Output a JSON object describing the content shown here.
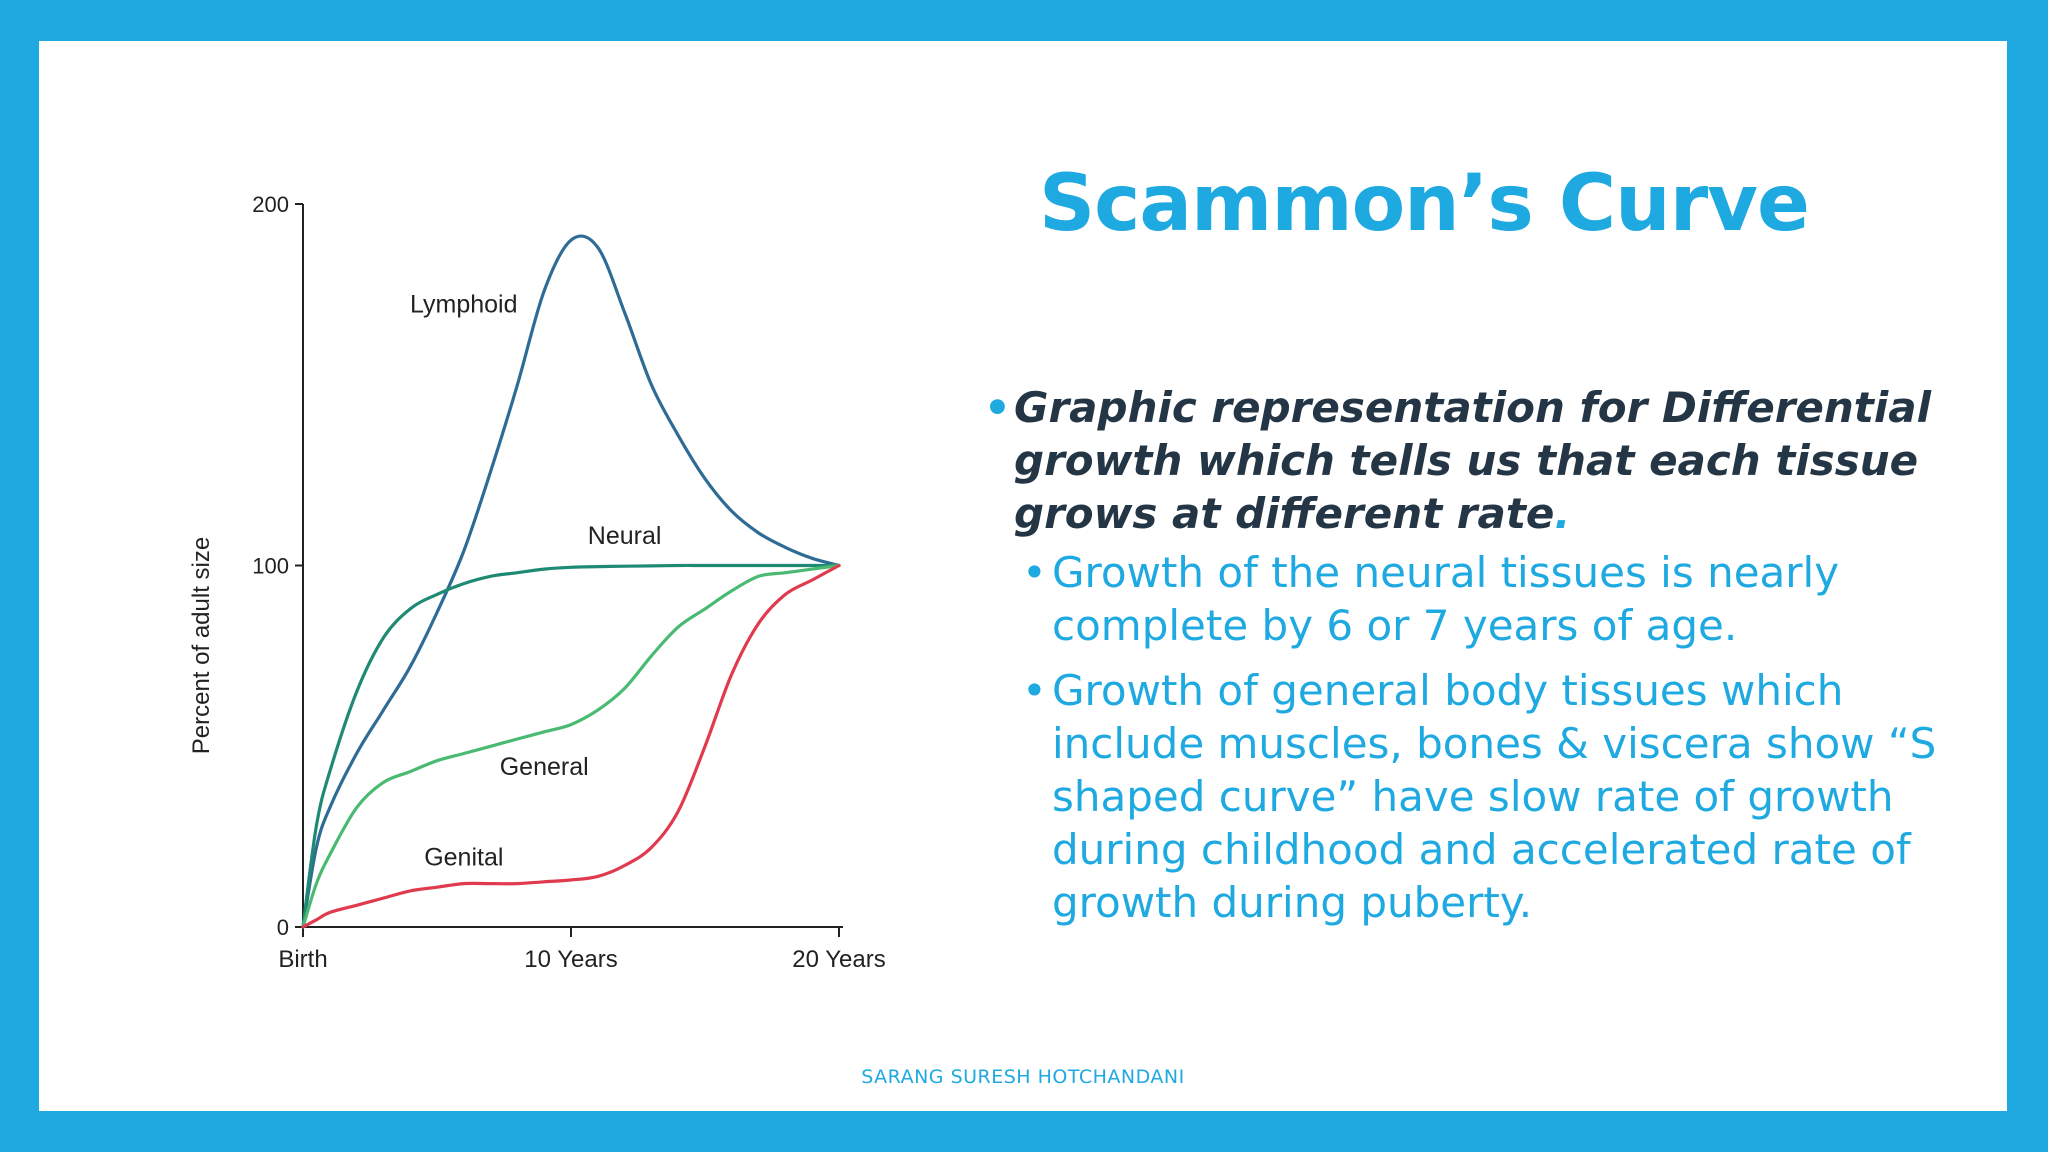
{
  "slide": {
    "title": "Scammon’s Curve",
    "main_bullet": {
      "text": "Graphic representation for Differential growth which tells us that each tissue grows at different rate",
      "trailing": "."
    },
    "sub_bullets": [
      "Growth of the neural tissues is nearly complete by 6 or 7 years of age.",
      "Growth of general body tissues which include muscles, bones & viscera show “S shaped curve” have slow rate of growth during childhood and accelerated rate of growth during puberty."
    ],
    "footer": "SARANG SURESH HOTCHANDANI",
    "colors": {
      "frame": "#1fa9e1",
      "accent": "#1fa9e1",
      "body_text": "#243645"
    }
  },
  "chart_data": {
    "type": "line",
    "ylabel": "Percent of adult size",
    "ylim": [
      0,
      200
    ],
    "yticks": [
      0,
      100,
      200
    ],
    "xlim": [
      0,
      20
    ],
    "xticks": [
      {
        "value": 0,
        "label": "Birth"
      },
      {
        "value": 10,
        "label": "10 Years"
      },
      {
        "value": 20,
        "label": "20 Years"
      }
    ],
    "series": [
      {
        "name": "Lymphoid",
        "color": "#2e6b95",
        "x": [
          0,
          0.5,
          1,
          2,
          3,
          4,
          5,
          6,
          7,
          8,
          9,
          10,
          11,
          12,
          13,
          14,
          15,
          16,
          17,
          18,
          19,
          20
        ],
        "y": [
          0,
          22,
          33,
          48,
          60,
          72,
          87,
          104,
          126,
          150,
          176,
          190,
          188,
          170,
          150,
          136,
          124,
          115,
          109,
          105,
          102,
          100
        ],
        "label_at": [
          6,
          170
        ]
      },
      {
        "name": "Neural",
        "color": "#1f8a74",
        "x": [
          0,
          0.5,
          1,
          2,
          3,
          4,
          5,
          6,
          7,
          8,
          9,
          10,
          11,
          12,
          13,
          14,
          15,
          16,
          17,
          18,
          19,
          20
        ],
        "y": [
          0,
          28,
          43,
          65,
          80,
          88,
          92,
          95,
          97,
          98,
          99,
          99.5,
          99.7,
          99.8,
          99.9,
          100,
          100,
          100,
          100,
          100,
          100,
          100
        ],
        "label_at": [
          12,
          106
        ]
      },
      {
        "name": "General",
        "color": "#4aba73",
        "x": [
          0,
          0.5,
          1,
          2,
          3,
          4,
          5,
          6,
          7,
          8,
          9,
          10,
          11,
          12,
          13,
          14,
          15,
          16,
          17,
          18,
          19,
          20
        ],
        "y": [
          0,
          12,
          20,
          33,
          40,
          43,
          46,
          48,
          50,
          52,
          54,
          56,
          60,
          66,
          75,
          83,
          88,
          93,
          97,
          98,
          99,
          100
        ],
        "label_at": [
          9,
          42
        ]
      },
      {
        "name": "Genital",
        "color": "#e03a4e",
        "x": [
          0,
          0.5,
          1,
          2,
          3,
          4,
          5,
          6,
          7,
          8,
          9,
          10,
          11,
          12,
          13,
          14,
          15,
          16,
          17,
          18,
          19,
          20
        ],
        "y": [
          0,
          2,
          4,
          6,
          8,
          10,
          11,
          12,
          12,
          12,
          12.5,
          13,
          14,
          17,
          22,
          32,
          50,
          70,
          84,
          92,
          96,
          100
        ],
        "label_at": [
          6,
          17
        ]
      }
    ]
  }
}
